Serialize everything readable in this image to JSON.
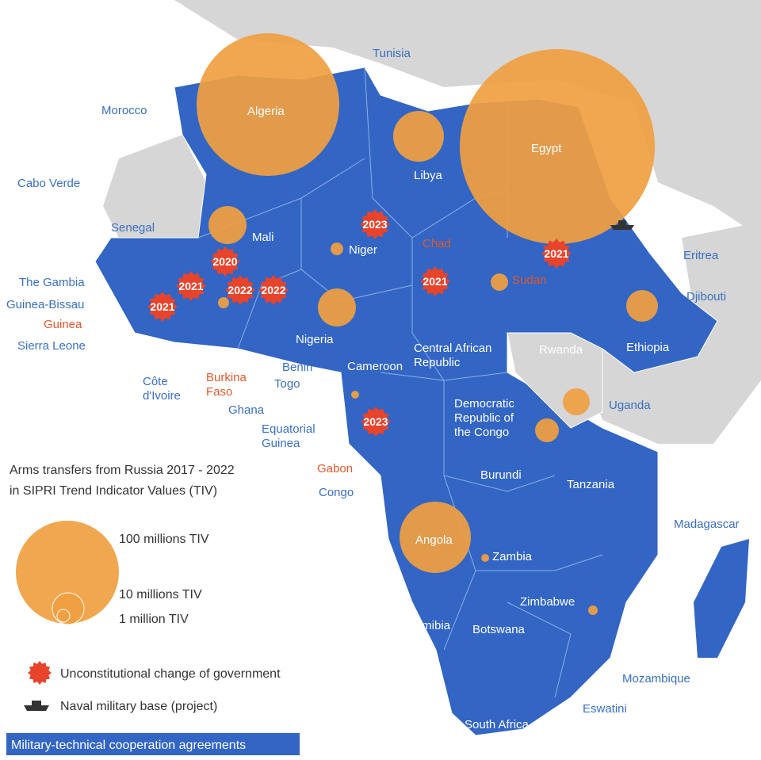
{
  "legend": {
    "title": [
      "Arms transfers from Russia 2017 - 2022",
      "in SIPRI Trend Indicator Values (TIV)"
    ],
    "sizes": [
      "100 millions TIV",
      "10 millions TIV",
      "1 million TIV"
    ],
    "coup": "Unconstitutional change of government",
    "naval": "Naval military base (project)",
    "agreements": "Military-technical cooperation agreements"
  },
  "countries": [
    [
      "Tunisia"
    ],
    [
      "Morocco"
    ],
    [
      "Algeria"
    ],
    [
      "Egypt"
    ],
    [
      "Libya"
    ],
    [
      "Cabo Verde"
    ],
    [
      "Senegal"
    ],
    [
      "Mali"
    ],
    [
      "Niger"
    ],
    [
      "Chad"
    ],
    [
      "Sudan"
    ],
    [
      "Eritrea"
    ],
    [
      "The Gambia"
    ],
    [
      "Djibouti"
    ],
    [
      "Guinea-Bissau"
    ],
    [
      "Guinea"
    ],
    [
      "Sierra Leone"
    ],
    [
      "Nigeria"
    ],
    [
      "Ethiopia"
    ],
    [
      "Rwanda"
    ],
    [
      "Central African",
      "Republic"
    ],
    [
      "Cameroon"
    ],
    [
      "Côte",
      "d'Ivoire"
    ],
    [
      "Burkina",
      "Faso"
    ],
    [
      "Ghana"
    ],
    [
      "Benin"
    ],
    [
      "Togo"
    ],
    [
      "Uganda"
    ],
    [
      "Democratic",
      "Republic of",
      "the Congo"
    ],
    [
      "Equatorial",
      "Guinea"
    ],
    [
      "Gabon"
    ],
    [
      "Burundi"
    ],
    [
      "Tanzania"
    ],
    [
      "Congo"
    ],
    [
      "Madagascar"
    ],
    [
      "Angola"
    ],
    [
      "Zambia"
    ],
    [
      "Zimbabwe"
    ],
    [
      "Namibia"
    ],
    [
      "Botswana"
    ],
    [
      "Mozambique"
    ],
    [
      "Eswatini"
    ],
    [
      "South Africa"
    ]
  ],
  "coups": [
    "2023",
    "2020",
    "2021",
    "2022",
    "2022",
    "2021",
    "2021",
    "2021",
    "2023"
  ]
}
